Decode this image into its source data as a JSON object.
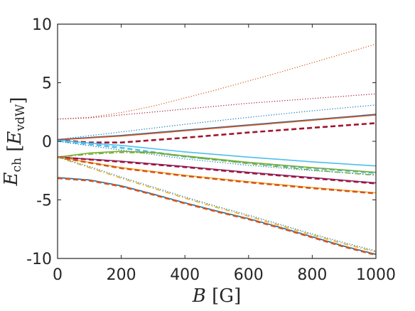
{
  "chart_data": {
    "type": "line",
    "xlabel": "B [G]",
    "ylabel": "E_ch [E_vdW]",
    "xlim": [
      0,
      1000
    ],
    "ylim": [
      -10,
      10
    ],
    "xticks": [
      "0",
      "200",
      "400",
      "600",
      "800",
      "1000"
    ],
    "yticks": [
      "-10",
      "-5",
      "0",
      "5",
      "10"
    ],
    "grid": false,
    "box": true,
    "series": [
      {
        "color": "#d95319",
        "style": "dotted",
        "x": [
          0,
          100,
          200,
          300,
          400,
          500,
          600,
          700,
          800,
          900,
          1000
        ],
        "y": [
          1.9,
          2.05,
          2.45,
          3.0,
          3.7,
          4.4,
          5.15,
          5.9,
          6.7,
          7.5,
          8.3
        ]
      },
      {
        "color": "#a2142f",
        "style": "dotted",
        "x": [
          0,
          100,
          200,
          300,
          400,
          500,
          600,
          700,
          800,
          900,
          1000
        ],
        "y": [
          1.9,
          2.0,
          2.25,
          2.5,
          2.75,
          3.0,
          3.25,
          3.45,
          3.65,
          3.85,
          4.05
        ]
      },
      {
        "color": "#0072bd",
        "style": "dotted",
        "x": [
          0,
          200,
          400,
          600,
          800,
          1000
        ],
        "y": [
          0.15,
          0.8,
          1.45,
          2.05,
          2.6,
          3.1
        ]
      },
      {
        "color": "#0072bd",
        "style": "solid",
        "x": [
          0,
          200,
          400,
          600,
          800,
          1000
        ],
        "y": [
          0.15,
          0.5,
          0.95,
          1.4,
          1.85,
          2.3
        ]
      },
      {
        "color": "#d95319",
        "style": "solid",
        "x": [
          0,
          200,
          400,
          600,
          800,
          1000
        ],
        "y": [
          0.12,
          0.45,
          0.9,
          1.35,
          1.8,
          2.25
        ]
      },
      {
        "color": "#a2142f",
        "style": "dashed",
        "x": [
          0,
          100,
          200,
          400,
          600,
          800,
          1000
        ],
        "y": [
          0.1,
          -0.1,
          -0.1,
          0.3,
          0.75,
          1.15,
          1.55
        ]
      },
      {
        "color": "#4dbeee",
        "style": "solid",
        "x": [
          0,
          100,
          200,
          400,
          600,
          800,
          1000
        ],
        "y": [
          0.1,
          -0.15,
          -0.35,
          -0.9,
          -1.35,
          -1.75,
          -2.1
        ]
      },
      {
        "color": "#4dbeee",
        "style": "dashed",
        "x": [
          0,
          200,
          400,
          600,
          800,
          1000
        ],
        "y": [
          0.05,
          -0.55,
          -1.3,
          -1.85,
          -2.3,
          -2.7
        ]
      },
      {
        "color": "#0072bd",
        "style": "dotted",
        "x": [
          0,
          200,
          400,
          600,
          800,
          1000
        ],
        "y": [
          0.0,
          -0.75,
          -1.5,
          -2.05,
          -2.5,
          -2.85
        ]
      },
      {
        "color": "#77ac30",
        "style": "solid",
        "x": [
          0,
          100,
          200,
          300,
          400,
          600,
          800,
          1000
        ],
        "y": [
          -1.35,
          -1.0,
          -0.85,
          -0.95,
          -1.25,
          -1.8,
          -2.25,
          -2.65
        ]
      },
      {
        "color": "#77ac30",
        "style": "dashdot",
        "x": [
          0,
          100,
          200,
          300,
          400,
          600,
          800,
          1000
        ],
        "y": [
          -1.35,
          -1.1,
          -0.95,
          -1.0,
          -1.3,
          -1.9,
          -2.45,
          -2.9
        ]
      },
      {
        "color": "#7e2f8e",
        "style": "solid",
        "x": [
          0,
          200,
          400,
          600,
          800,
          1000
        ],
        "y": [
          -1.35,
          -1.7,
          -2.15,
          -2.65,
          -3.1,
          -3.55
        ]
      },
      {
        "color": "#a2142f",
        "style": "dashed",
        "x": [
          0,
          200,
          400,
          600,
          800,
          1000
        ],
        "y": [
          -1.35,
          -1.75,
          -2.2,
          -2.7,
          -3.15,
          -3.6
        ]
      },
      {
        "color": "#edb120",
        "style": "solid",
        "x": [
          0,
          200,
          400,
          600,
          800,
          1000
        ],
        "y": [
          -1.35,
          -2.25,
          -2.9,
          -3.45,
          -3.95,
          -4.4
        ]
      },
      {
        "color": "#d95319",
        "style": "dashed",
        "x": [
          0,
          200,
          400,
          600,
          800,
          1000
        ],
        "y": [
          -1.35,
          -2.3,
          -2.95,
          -3.5,
          -4.0,
          -4.45
        ]
      },
      {
        "color": "#edb120",
        "style": "dashdot",
        "x": [
          0,
          100,
          200,
          300,
          400,
          500,
          600,
          700,
          800,
          900,
          1000
        ],
        "y": [
          -1.35,
          -2.25,
          -3.15,
          -4.0,
          -4.85,
          -5.65,
          -6.4,
          -7.2,
          -8.0,
          -8.75,
          -9.45
        ]
      },
      {
        "color": "#0072bd",
        "style": "dotted",
        "x": [
          0,
          100,
          200,
          300,
          400,
          500,
          600,
          700,
          800,
          900,
          1000
        ],
        "y": [
          -1.35,
          -2.15,
          -3.05,
          -3.9,
          -4.75,
          -5.55,
          -6.3,
          -7.1,
          -7.9,
          -8.65,
          -9.35
        ]
      },
      {
        "color": "#0072bd",
        "style": "solid",
        "x": [
          0,
          100,
          200,
          300,
          400,
          500,
          600,
          700,
          800,
          900,
          1000
        ],
        "y": [
          -3.1,
          -3.3,
          -3.8,
          -4.5,
          -5.25,
          -5.95,
          -6.6,
          -7.35,
          -8.15,
          -8.95,
          -9.65
        ]
      },
      {
        "color": "#d95319",
        "style": "dashed",
        "x": [
          0,
          100,
          200,
          300,
          400,
          500,
          600,
          700,
          800,
          900,
          1000
        ],
        "y": [
          -3.15,
          -3.35,
          -3.85,
          -4.55,
          -5.3,
          -6.0,
          -6.65,
          -7.4,
          -8.2,
          -9.0,
          -9.7
        ]
      }
    ]
  }
}
